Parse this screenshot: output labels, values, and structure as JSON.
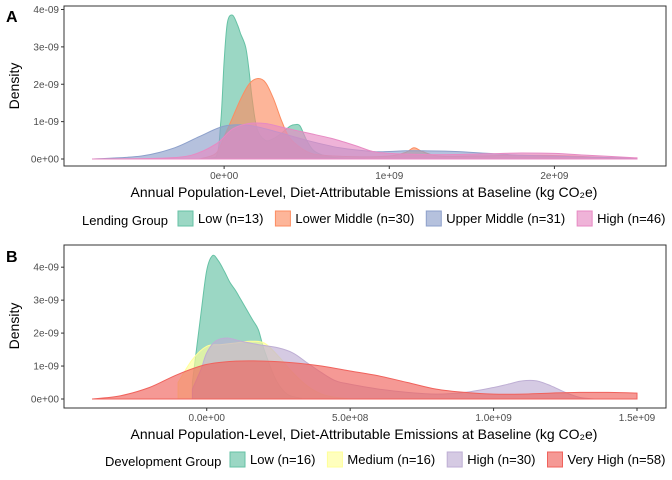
{
  "colors": {
    "panel_a": [
      "#66c2a5",
      "#fc8d62",
      "#8da0cb",
      "#e78ac3"
    ],
    "panel_b": [
      "#66c2a5",
      "#ffff99",
      "#beaed4",
      "#f0625c"
    ]
  },
  "chart_data": [
    {
      "type": "area",
      "panel_label": "A",
      "xlabel": "Annual Population-Level, Diet-Attributable Emissions at Baseline (kg CO₂e)",
      "ylabel": "Density",
      "xlim": [
        -800000000.0,
        2500000000.0
      ],
      "ylim": [
        0,
        4e-09
      ],
      "x_ticks": [
        0,
        1000000000.0,
        2000000000.0
      ],
      "x_tick_labels": [
        "0e+00",
        "1e+09",
        "2e+09"
      ],
      "y_ticks": [
        0,
        1e-09,
        2e-09,
        3e-09,
        4e-09
      ],
      "y_tick_labels": [
        "0e+00",
        "1e-09",
        "2e-09",
        "3e-09",
        "4e-09"
      ],
      "grid": false,
      "legend_title": "Lending Group",
      "legend_position": "bottom",
      "series": [
        {
          "name": "Low (n=13)",
          "x": [
            -150000000.0,
            -50000000.0,
            -20000000.0,
            0,
            20000000.0,
            50000000.0,
            80000000.0,
            100000000.0,
            130000000.0,
            150000000.0,
            170000000.0,
            200000000.0,
            250000000.0,
            300000000.0,
            350000000.0,
            400000000.0,
            430000000.0,
            460000000.0,
            500000000.0,
            550000000.0,
            650000000.0,
            800000000.0,
            1000000000.0
          ],
          "values": [
            0,
            5e-11,
            1e-09,
            2.6e-09,
            3.65e-09,
            3.85e-09,
            3.6e-09,
            3.35e-09,
            3e-09,
            2.4e-09,
            1.6e-09,
            8e-10,
            5e-10,
            5.5e-10,
            7e-10,
            8.8e-10,
            9.2e-10,
            8.8e-10,
            5e-10,
            2e-10,
            5e-11,
            1e-11,
            0
          ]
        },
        {
          "name": "Lower Middle (n=30)",
          "x": [
            -150000000.0,
            -50000000.0,
            0,
            50000000.0,
            100000000.0,
            150000000.0,
            200000000.0,
            250000000.0,
            300000000.0,
            350000000.0,
            400000000.0,
            500000000.0,
            600000000.0,
            800000000.0,
            1000000000.0,
            1100000000.0,
            1150000000.0,
            1200000000.0,
            1300000000.0,
            1500000000.0,
            1800000000.0,
            2100000000.0,
            2300000000.0,
            2500000000.0
          ],
          "values": [
            0,
            1.5e-10,
            6e-10,
            1.1e-09,
            1.6e-09,
            2e-09,
            2.15e-09,
            2.05e-09,
            1.6e-09,
            1e-09,
            5.5e-10,
            2e-10,
            1e-10,
            6e-11,
            8e-11,
            1.8e-10,
            3e-10,
            2e-10,
            8e-11,
            8e-11,
            1e-10,
            8e-11,
            4e-11,
            2e-11
          ]
        },
        {
          "name": "Upper Middle (n=31)",
          "x": [
            -800000000.0,
            -500000000.0,
            -300000000.0,
            -150000000.0,
            0,
            150000000.0,
            300000000.0,
            500000000.0,
            700000000.0,
            900000000.0,
            1000000000.0,
            1100000000.0,
            1200000000.0,
            1400000000.0,
            1600000000.0,
            1800000000.0,
            2000000000.0,
            2200000000.0,
            2500000000.0
          ],
          "values": [
            0,
            8e-11,
            3e-10,
            6e-10,
            8.8e-10,
            9e-10,
            7.5e-10,
            5e-10,
            3e-10,
            2e-10,
            2e-10,
            2.2e-10,
            2.2e-10,
            2e-10,
            1.5e-10,
            1e-10,
            8e-11,
            5e-11,
            2e-11
          ]
        },
        {
          "name": "High (n=46)",
          "x": [
            -800000000.0,
            -400000000.0,
            -200000000.0,
            -50000000.0,
            50000000.0,
            150000000.0,
            250000000.0,
            350000000.0,
            500000000.0,
            650000000.0,
            800000000.0,
            900000000.0,
            1000000000.0,
            1200000000.0,
            1400000000.0,
            1600000000.0,
            1800000000.0,
            2000000000.0,
            2200000000.0,
            2500000000.0
          ],
          "values": [
            0,
            2e-11,
            1e-10,
            4e-10,
            8e-10,
            9.5e-10,
            9.5e-10,
            8.5e-10,
            7e-10,
            5.5e-10,
            3.5e-10,
            2e-10,
            1.5e-10,
            1.2e-10,
            1.2e-10,
            1.4e-10,
            1.6e-10,
            1.5e-10,
            1e-10,
            3e-11
          ]
        }
      ],
      "legend_entries": [
        "Low (n=13)",
        "Lower Middle (n=30)",
        "Upper Middle (n=31)",
        "High (n=46)"
      ]
    },
    {
      "type": "area",
      "panel_label": "B",
      "xlabel": "Annual Population-Level, Diet-Attributable Emissions at Baseline (kg CO₂e)",
      "ylabel": "Density",
      "xlim": [
        -400000000.0,
        1500000000.0
      ],
      "ylim": [
        0,
        4.4e-09
      ],
      "x_ticks": [
        0,
        500000000.0,
        1000000000.0,
        1500000000.0
      ],
      "x_tick_labels": [
        "0.0e+00",
        "5.0e+08",
        "1.0e+09",
        "1.5e+09"
      ],
      "y_ticks": [
        0,
        1e-09,
        2e-09,
        3e-09,
        4e-09
      ],
      "y_tick_labels": [
        "0e+00",
        "1e-09",
        "2e-09",
        "3e-09",
        "4e-09"
      ],
      "grid": false,
      "legend_title": "Development Group",
      "legend_position": "bottom",
      "series": [
        {
          "name": "Low (n=16)",
          "x": [
            -50000000.0,
            -20000000.0,
            0,
            20000000.0,
            40000000.0,
            60000000.0,
            80000000.0,
            100000000.0,
            120000000.0,
            140000000.0,
            160000000.0,
            180000000.0,
            200000000.0,
            240000000.0,
            280000000.0,
            330000000.0
          ],
          "values": [
            5e-10,
            2.6e-09,
            3.9e-09,
            4.35e-09,
            4.2e-09,
            3.9e-09,
            3.55e-09,
            3.3e-09,
            3e-09,
            2.7e-09,
            2.4e-09,
            2.1e-09,
            1.5e-09,
            6e-10,
            1.5e-10,
            2e-11
          ]
        },
        {
          "name": "Medium (n=16)",
          "x": [
            -100000000.0,
            -50000000.0,
            0,
            50000000.0,
            100000000.0,
            150000000.0,
            200000000.0,
            250000000.0,
            300000000.0,
            350000000.0,
            400000000.0,
            450000000.0,
            500000000.0
          ],
          "values": [
            5e-10,
            1.2e-09,
            1.6e-09,
            1.65e-09,
            1.7e-09,
            1.75e-09,
            1.7e-09,
            1.3e-09,
            8e-10,
            4e-10,
            1.5e-10,
            5e-11,
            0
          ]
        },
        {
          "name": "High (n=30)",
          "x": [
            -50000000.0,
            -20000000.0,
            0,
            30000000.0,
            70000000.0,
            120000000.0,
            180000000.0,
            250000000.0,
            300000000.0,
            350000000.0,
            400000000.0,
            450000000.0,
            500000000.0,
            600000000.0,
            700000000.0,
            800000000.0,
            900000000.0,
            1000000000.0,
            1050000000.0,
            1100000000.0,
            1150000000.0,
            1200000000.0,
            1250000000.0,
            1300000000.0,
            1350000000.0
          ],
          "values": [
            3e-10,
            9e-10,
            1.4e-09,
            1.75e-09,
            1.85e-09,
            1.75e-09,
            1.65e-09,
            1.55e-09,
            1.4e-09,
            1.1e-09,
            8e-10,
            5.5e-10,
            4.5e-10,
            3e-10,
            2e-10,
            1.5e-10,
            2e-10,
            3.5e-10,
            4.5e-10,
            5.5e-10,
            5.5e-10,
            4e-10,
            2e-10,
            5e-11,
            0
          ]
        },
        {
          "name": "Very High (n=58)",
          "x": [
            -400000000.0,
            -300000000.0,
            -200000000.0,
            -100000000.0,
            0,
            100000000.0,
            200000000.0,
            300000000.0,
            400000000.0,
            500000000.0,
            600000000.0,
            700000000.0,
            800000000.0,
            900000000.0,
            1000000000.0,
            1100000000.0,
            1200000000.0,
            1300000000.0,
            1400000000.0,
            1500000000.0
          ],
          "values": [
            0,
            1e-10,
            3.5e-10,
            7.5e-10,
            1.05e-09,
            1.15e-09,
            1.15e-09,
            1.1e-09,
            1e-09,
            8.5e-10,
            7e-10,
            5e-10,
            3e-10,
            2e-10,
            1.5e-10,
            1.5e-10,
            1.8e-10,
            2e-10,
            2e-10,
            1.8e-10
          ]
        }
      ],
      "legend_entries": [
        "Low (n=16)",
        "Medium (n=16)",
        "High (n=30)",
        "Very High (n=58)"
      ]
    }
  ]
}
